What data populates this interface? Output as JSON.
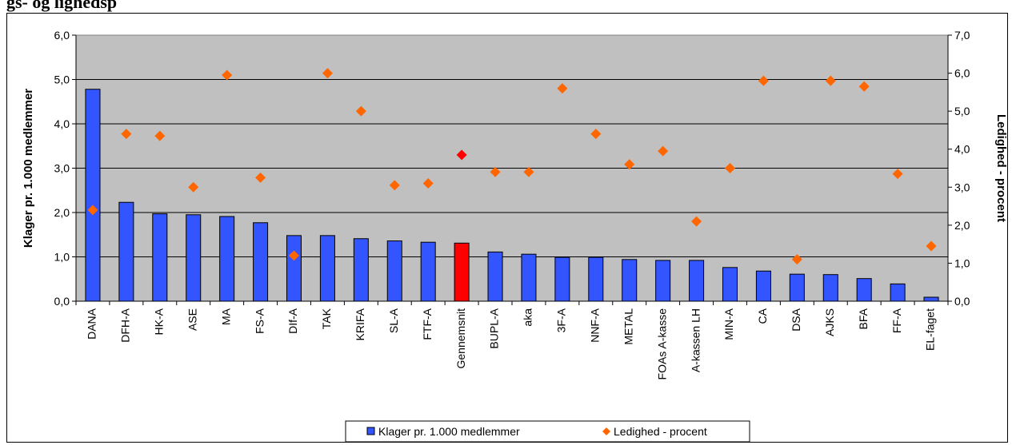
{
  "page": {
    "heading_fragment": "gs- og lighedsp"
  },
  "chart_data": {
    "type": "bar",
    "categories": [
      "DANA",
      "DFH-A",
      "HK-A",
      "ASE",
      "MA",
      "FS-A",
      "DIf-A",
      "TAK",
      "KRIFA",
      "SL-A",
      "FTF-A",
      "Gennemsnit",
      "BUPL-A",
      "aka",
      "3F-A",
      "NNF-A",
      "METAL",
      "FOAs A-kasse",
      "A-kassen LH",
      "MIN-A",
      "CA",
      "DSA",
      "AJKS",
      "BFA",
      "FF-A",
      "EL-faget"
    ],
    "series": [
      {
        "name": "Klager pr. 1.000 medlemmer",
        "type": "bar",
        "axis": "left",
        "color": "#3355ff",
        "highlight_color": "#ff0000",
        "highlight_index": 11,
        "values": [
          4.78,
          2.23,
          1.97,
          1.95,
          1.91,
          1.77,
          1.48,
          1.48,
          1.41,
          1.36,
          1.33,
          1.31,
          1.11,
          1.06,
          0.99,
          0.99,
          0.94,
          0.92,
          0.92,
          0.76,
          0.68,
          0.61,
          0.6,
          0.51,
          0.39,
          0.09
        ]
      },
      {
        "name": "Ledighed - procent",
        "type": "scatter",
        "axis": "right",
        "color": "#ff6600",
        "highlight_color": "#ff0000",
        "highlight_index": 11,
        "values": [
          2.4,
          4.4,
          4.35,
          3.0,
          5.95,
          3.25,
          1.2,
          6.0,
          5.0,
          3.05,
          3.1,
          3.85,
          3.4,
          3.4,
          5.6,
          4.4,
          3.6,
          3.95,
          2.1,
          3.5,
          5.8,
          1.1,
          5.8,
          5.65,
          3.35,
          1.45
        ]
      }
    ],
    "ylabel": "Klager pr. 1.000 medlemmer",
    "ylabel_right": "Ledighed - procent",
    "ylim": [
      0,
      6
    ],
    "ylim_right": [
      0,
      7
    ],
    "yticks": [
      "0,0",
      "1,0",
      "2,0",
      "3,0",
      "4,0",
      "5,0",
      "6,0"
    ],
    "yticks_right": [
      "0,0",
      "1,0",
      "2,0",
      "3,0",
      "4,0",
      "5,0",
      "6,0",
      "7,0"
    ],
    "plot_background": "#c0c0c0",
    "grid": true,
    "legend": "bottom-center"
  }
}
